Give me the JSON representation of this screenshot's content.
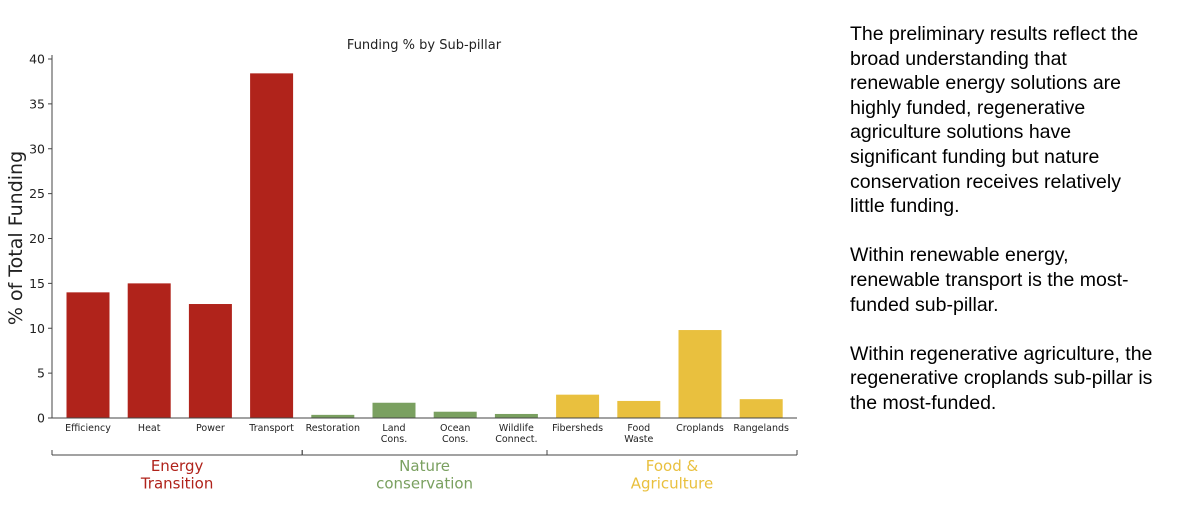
{
  "chart_data": {
    "type": "bar",
    "title": "Funding % by Sub-pillar",
    "xlabel": "",
    "ylabel": "% of Total Funding",
    "ylim": [
      0,
      40
    ],
    "yticks": [
      0,
      5,
      10,
      15,
      20,
      25,
      30,
      35,
      40
    ],
    "grid": false,
    "categories": [
      "Efficiency",
      "Heat",
      "Power",
      "Transport",
      "Restoration",
      "Land\nCons.",
      "Ocean\nCons.",
      "Wildlife\nConnect.",
      "Fibersheds",
      "Food\nWaste",
      "Croplands",
      "Rangelands"
    ],
    "values": [
      14.0,
      15.0,
      12.7,
      38.4,
      0.35,
      1.7,
      0.7,
      0.45,
      2.6,
      1.9,
      9.8,
      2.1
    ],
    "groups": [
      {
        "label": "Energy\nTransition",
        "color": "#b0231b",
        "count": 4
      },
      {
        "label": "Nature\nconservation",
        "color": "#7aa060",
        "count": 4
      },
      {
        "label": "Food &\nAgriculture",
        "color": "#e9c03e",
        "count": 4
      }
    ]
  },
  "commentary": [
    [
      "The preliminary results reflect the",
      "broad understanding that",
      "renewable energy solutions are",
      "highly funded, regenerative",
      "agriculture solutions have",
      "significant funding but nature",
      "conservation receives relatively",
      "little funding."
    ],
    [
      "Within renewable energy,",
      "renewable transport is the most-",
      "funded sub-pillar."
    ],
    [
      "Within regenerative agriculture, the",
      "regenerative croplands sub-pillar is",
      "the most-funded."
    ]
  ]
}
